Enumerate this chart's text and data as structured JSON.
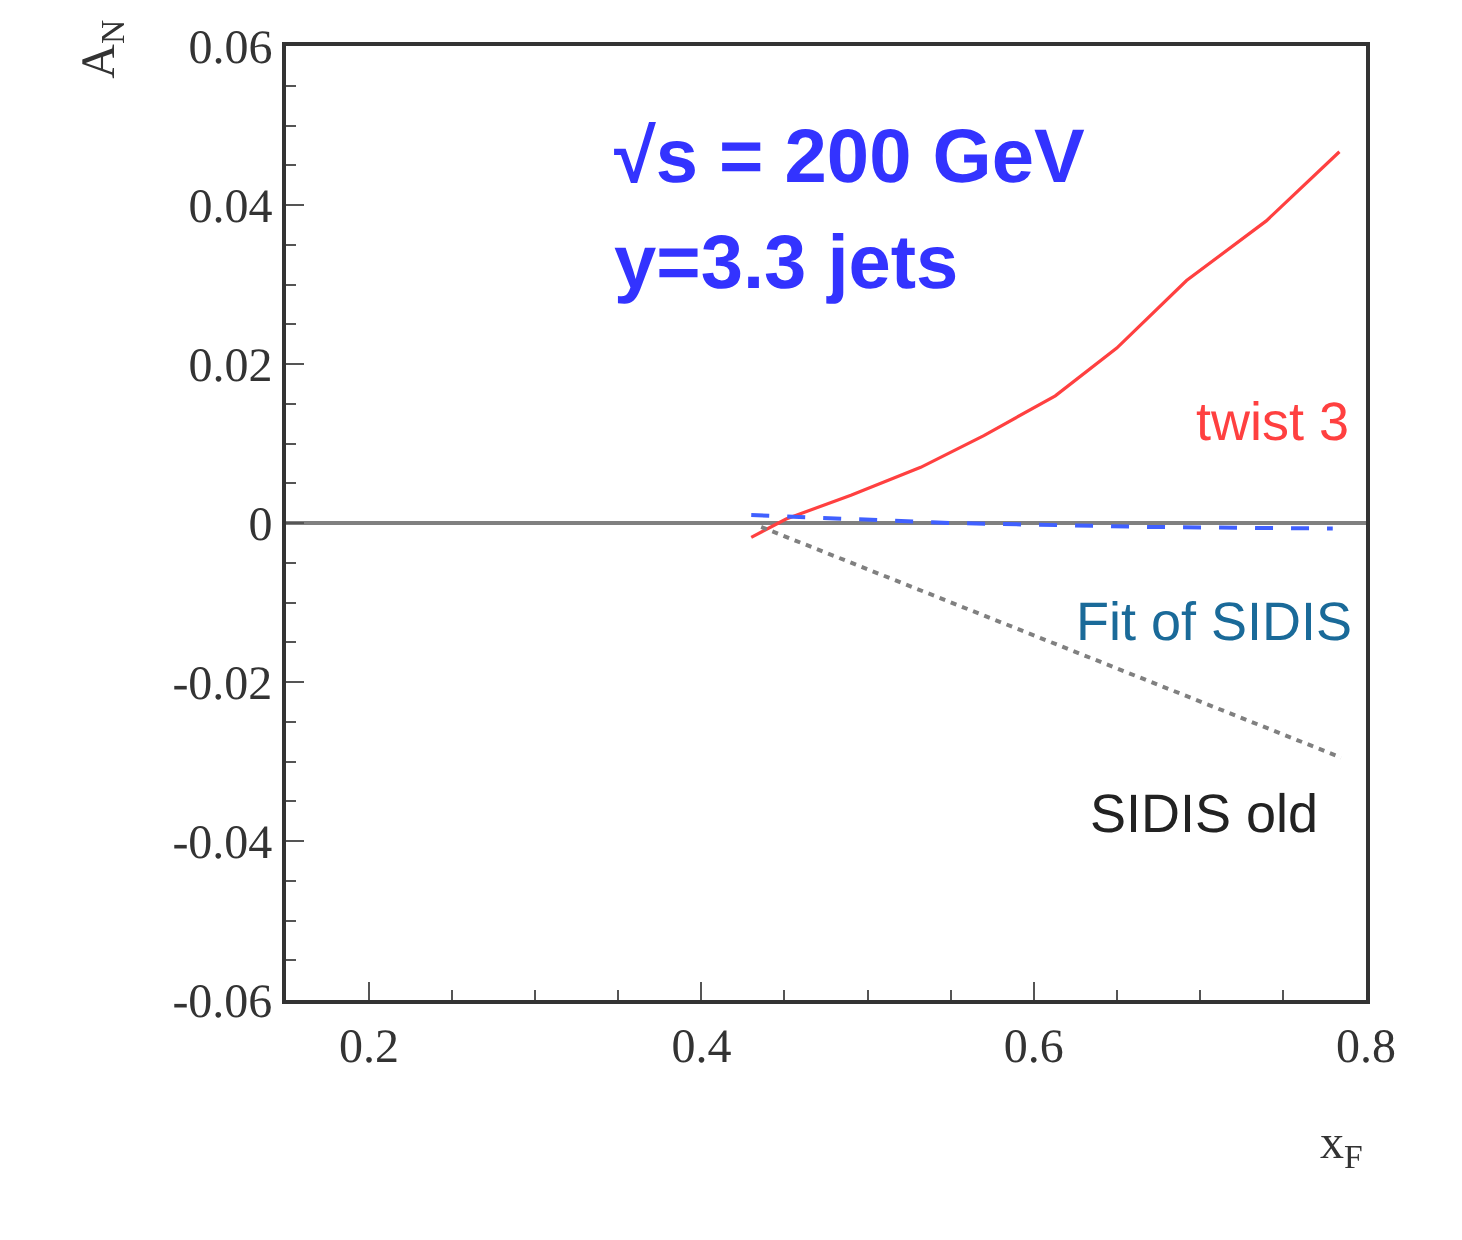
{
  "chart_data": {
    "type": "line",
    "xlabel": "x$_{F}$",
    "ylabel": "A$_{N}$",
    "annotations": [
      "√s = 200 GeV",
      "y=3.3 jets"
    ],
    "xlim": [
      0.15,
      0.8
    ],
    "xticks": [
      0.2,
      0.4,
      0.6,
      0.8
    ],
    "ylim": [
      -0.06,
      0.06
    ],
    "yticks": [
      -0.06,
      -0.04,
      -0.02,
      0,
      0.02,
      0.04,
      0.06
    ],
    "ref_lines": [
      {
        "axis": "y",
        "value": 0,
        "color": "#808080"
      }
    ],
    "series": [
      {
        "name": "twist 3",
        "color": "#ff4040",
        "line_style": "solid",
        "x": [
          0.43,
          0.451,
          0.49,
          0.532,
          0.57,
          0.613,
          0.65,
          0.692,
          0.74,
          0.784
        ],
        "values": [
          -0.0018,
          0.0005,
          0.0035,
          0.007,
          0.011,
          0.016,
          0.022,
          0.0305,
          0.038,
          0.0467
        ]
      },
      {
        "name": "Fit of SIDIS",
        "color": "#4060ff",
        "line_style": "dashed",
        "x": [
          0.43,
          0.55,
          0.67,
          0.78
        ],
        "values": [
          0.001,
          0.0,
          -0.0005,
          -0.0007
        ]
      },
      {
        "name": "SIDIS old",
        "color": "#808080",
        "line_style": "dotted",
        "x": [
          0.436,
          0.785
        ],
        "values": [
          -0.0005,
          -0.0295
        ]
      }
    ]
  }
}
